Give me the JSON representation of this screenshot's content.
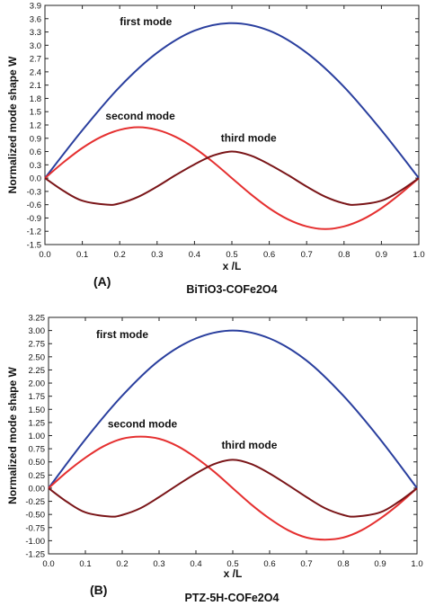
{
  "chart_data": [
    {
      "type": "line",
      "panel_label": "(A)",
      "material": "BiTiO3-COFe2O4",
      "xlabel": "x /L",
      "ylabel": "Normalized mode shape W",
      "xlim": [
        0.0,
        1.0
      ],
      "ylim": [
        -1.5,
        3.9
      ],
      "x_ticks": [
        "0.0",
        "0.1",
        "0.2",
        "0.3",
        "0.4",
        "0.5",
        "0.6",
        "0.7",
        "0.8",
        "0.9",
        "1.0"
      ],
      "y_ticks": [
        "3.9",
        "3.6",
        "3.3",
        "3.0",
        "2.7",
        "2.4",
        "2.1",
        "1.8",
        "1.5",
        "1.2",
        "0.9",
        "0.6",
        "0.3",
        "0.0",
        "-0.3",
        "-0.6",
        "-0.9",
        "-1.2",
        "-1.5"
      ],
      "series": [
        {
          "name": "first mode",
          "color": "#2a3f9e",
          "x": [
            0.0,
            0.1,
            0.2,
            0.3,
            0.4,
            0.5,
            0.6,
            0.7,
            0.8,
            0.9,
            1.0
          ],
          "values": [
            0.0,
            1.08,
            2.06,
            2.83,
            3.33,
            3.5,
            3.33,
            2.83,
            2.06,
            1.08,
            0.0
          ]
        },
        {
          "name": "second mode",
          "color": "#e53030",
          "x": [
            0.0,
            0.05,
            0.1,
            0.15,
            0.2,
            0.25,
            0.3,
            0.35,
            0.4,
            0.45,
            0.5,
            0.55,
            0.6,
            0.65,
            0.7,
            0.75,
            0.8,
            0.85,
            0.9,
            0.95,
            1.0
          ],
          "values": [
            0.0,
            0.36,
            0.68,
            0.93,
            1.09,
            1.15,
            1.09,
            0.93,
            0.68,
            0.36,
            0.0,
            -0.36,
            -0.68,
            -0.93,
            -1.09,
            -1.15,
            -1.09,
            -0.93,
            -0.68,
            -0.36,
            0.0
          ]
        },
        {
          "name": "third mode",
          "color": "#7a1518",
          "x": [
            0.0,
            0.05,
            0.1,
            0.1667,
            0.2,
            0.25,
            0.3,
            0.35,
            0.4,
            0.45,
            0.5,
            0.55,
            0.6,
            0.65,
            0.7,
            0.75,
            0.8,
            0.8333,
            0.9,
            0.95,
            1.0
          ],
          "values": [
            0.0,
            -0.29,
            -0.51,
            -0.6,
            -0.57,
            -0.42,
            -0.19,
            0.07,
            0.31,
            0.51,
            0.6,
            0.51,
            0.31,
            0.07,
            -0.19,
            -0.42,
            -0.57,
            -0.6,
            -0.51,
            -0.29,
            0.0
          ]
        }
      ],
      "annotations": [
        {
          "text": "first mode",
          "x": 0.27,
          "y": 3.45
        },
        {
          "text": "second mode",
          "x": 0.255,
          "y": 1.32
        },
        {
          "text": "third mode",
          "x": 0.545,
          "y": 0.82
        }
      ]
    },
    {
      "type": "line",
      "panel_label": "(B)",
      "material": "PTZ-5H-COFe2O4",
      "xlabel": "x /L",
      "ylabel": "Normalized mode shape W",
      "xlim": [
        0.0,
        1.0
      ],
      "ylim": [
        -1.25,
        3.25
      ],
      "x_ticks": [
        "0.0",
        "0.1",
        "0.2",
        "0.3",
        "0.4",
        "0.5",
        "0.6",
        "0.7",
        "0.8",
        "0.9",
        "1.0"
      ],
      "y_ticks": [
        "3.25",
        "3.00",
        "2.75",
        "2.50",
        "2.25",
        "2.00",
        "1.75",
        "1.50",
        "1.25",
        "1.00",
        "0.75",
        "0.50",
        "0.25",
        "0.00",
        "-0.25",
        "-0.50",
        "-0.75",
        "-1.00",
        "-1.25"
      ],
      "series": [
        {
          "name": "first mode",
          "color": "#2a3f9e",
          "x": [
            0.0,
            0.1,
            0.2,
            0.3,
            0.4,
            0.5,
            0.6,
            0.7,
            0.8,
            0.9,
            1.0
          ],
          "values": [
            0.0,
            0.93,
            1.76,
            2.43,
            2.85,
            3.0,
            2.85,
            2.43,
            1.76,
            0.93,
            0.0
          ]
        },
        {
          "name": "second mode",
          "color": "#e53030",
          "x": [
            0.0,
            0.05,
            0.1,
            0.15,
            0.2,
            0.25,
            0.3,
            0.35,
            0.4,
            0.45,
            0.5,
            0.55,
            0.6,
            0.65,
            0.7,
            0.75,
            0.8,
            0.85,
            0.9,
            0.95,
            1.0
          ],
          "values": [
            0.0,
            0.31,
            0.58,
            0.8,
            0.94,
            0.98,
            0.94,
            0.8,
            0.58,
            0.31,
            0.0,
            -0.31,
            -0.58,
            -0.8,
            -0.94,
            -0.98,
            -0.94,
            -0.8,
            -0.58,
            -0.31,
            0.0
          ]
        },
        {
          "name": "third mode",
          "color": "#7a1518",
          "x": [
            0.0,
            0.05,
            0.1,
            0.1667,
            0.2,
            0.25,
            0.3,
            0.35,
            0.4,
            0.45,
            0.5,
            0.55,
            0.6,
            0.65,
            0.7,
            0.75,
            0.8,
            0.8333,
            0.9,
            0.95,
            1.0
          ],
          "values": [
            0.0,
            -0.26,
            -0.46,
            -0.54,
            -0.51,
            -0.38,
            -0.17,
            0.06,
            0.28,
            0.46,
            0.54,
            0.46,
            0.28,
            0.06,
            -0.17,
            -0.38,
            -0.51,
            -0.54,
            -0.46,
            -0.26,
            0.0
          ]
        }
      ],
      "annotations": [
        {
          "text": "first mode",
          "x": 0.2,
          "y": 2.86
        },
        {
          "text": "second mode",
          "x": 0.255,
          "y": 1.15
        },
        {
          "text": "third mode",
          "x": 0.545,
          "y": 0.75
        }
      ]
    }
  ]
}
